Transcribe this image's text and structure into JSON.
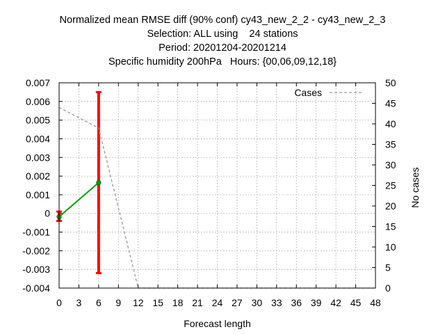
{
  "title_lines": [
    "Normalized mean RMSE diff (90% conf) cy43_new_2_2 - cy43_new_2_3",
    "Selection: ALL using    24 stations",
    "Period: 20201204-20201214",
    "Specific humidity 200hPa   Hours: {00,06,09,12,18}"
  ],
  "chart_data": {
    "type": "line",
    "xlabel": "Forecast length",
    "ylabel_right": "No cases",
    "x_ticks": [
      "0",
      "3",
      "6",
      "9",
      "12",
      "15",
      "18",
      "21",
      "24",
      "27",
      "30",
      "33",
      "36",
      "39",
      "42",
      "45",
      "48"
    ],
    "y_ticks": [
      "0.007",
      "0.006",
      "0.005",
      "0.004",
      "0.003",
      "0.002",
      "0.001",
      "0",
      "-0.001",
      "-0.002",
      "-0.003",
      "-0.004"
    ],
    "y2_ticks": [
      "50",
      "45",
      "40",
      "35",
      "30",
      "25",
      "20",
      "15",
      "10",
      "5",
      "0"
    ],
    "xlim": [
      0,
      48
    ],
    "ylim": [
      -0.004,
      0.007
    ],
    "y2lim": [
      0,
      50
    ],
    "grid": true,
    "legend_position": "top-right",
    "series": [
      {
        "axis": "left",
        "color": "#00a000",
        "x": [
          0,
          6
        ],
        "y": [
          -0.00018,
          0.00165
        ],
        "error_low": [
          -0.0004,
          -0.0032
        ],
        "error_high": [
          0.0001,
          0.0065
        ],
        "error_color": "#ff0000"
      },
      {
        "name": "Cases",
        "axis": "right",
        "style": "dashed",
        "color": "#999999",
        "x": [
          0,
          6,
          12,
          18,
          24,
          30,
          36,
          42,
          48
        ],
        "y": [
          44,
          39,
          0,
          0,
          0,
          0,
          0,
          0,
          0
        ]
      }
    ]
  }
}
